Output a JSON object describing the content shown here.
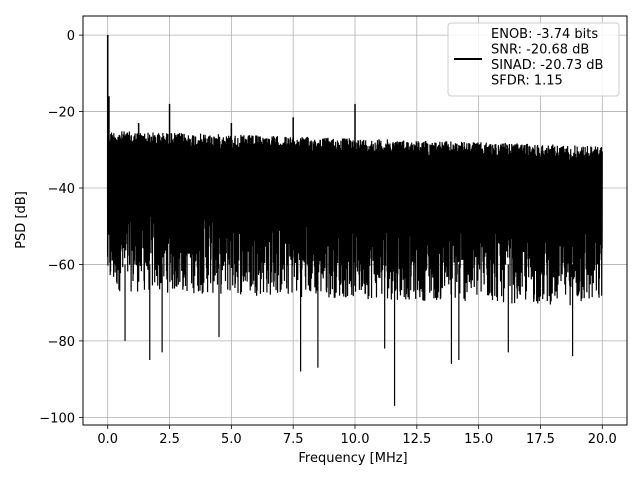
{
  "chart_data": {
    "type": "line",
    "title": "",
    "xlabel": "Frequency [MHz]",
    "ylabel": "PSD [dB]",
    "xlim": [
      -1.0,
      21.0
    ],
    "ylim": [
      -102,
      5
    ],
    "xticks": [
      0.0,
      2.5,
      5.0,
      7.5,
      10.0,
      12.5,
      15.0,
      17.5,
      20.0
    ],
    "xtick_labels": [
      "0.0",
      "2.5",
      "5.0",
      "7.5",
      "10.0",
      "12.5",
      "15.0",
      "17.5",
      "20.0"
    ],
    "yticks": [
      0,
      -20,
      -40,
      -60,
      -80,
      -100
    ],
    "ytick_labels": [
      "0",
      "−20",
      "−40",
      "−60",
      "−80",
      "−100"
    ],
    "grid": true,
    "legend_position": "top-right",
    "line_color": "#000000",
    "series": [
      {
        "name": "ENOB: -3.74 bits\nSNR: -20.68 dB\nSINAD: -20.73 dB\nSFDR: 1.15",
        "noise_envelope": {
          "x_range": [
            0.0,
            20.0
          ],
          "upper": [
            [
              0.0,
              -25
            ],
            [
              5.0,
              -26
            ],
            [
              10.0,
              -27
            ],
            [
              15.0,
              -28
            ],
            [
              20.0,
              -29
            ]
          ],
          "lower": [
            [
              0.0,
              -67
            ],
            [
              5.0,
              -68
            ],
            [
              10.0,
              -69
            ],
            [
              15.0,
              -70
            ],
            [
              20.0,
              -71
            ]
          ]
        },
        "peaks": [
          {
            "x": 0.0,
            "y": 0
          },
          {
            "x": 0.05,
            "y": -16
          },
          {
            "x": 2.5,
            "y": -18
          },
          {
            "x": 7.5,
            "y": -21.5
          },
          {
            "x": 10.0,
            "y": -18
          },
          {
            "x": 1.25,
            "y": -23
          },
          {
            "x": 5.0,
            "y": -23
          }
        ],
        "dips": [
          {
            "x": 0.7,
            "y": -80
          },
          {
            "x": 1.7,
            "y": -85
          },
          {
            "x": 2.2,
            "y": -83
          },
          {
            "x": 4.5,
            "y": -79
          },
          {
            "x": 7.8,
            "y": -88
          },
          {
            "x": 8.5,
            "y": -87
          },
          {
            "x": 11.2,
            "y": -82
          },
          {
            "x": 11.6,
            "y": -97
          },
          {
            "x": 13.9,
            "y": -86
          },
          {
            "x": 14.2,
            "y": -85
          },
          {
            "x": 16.2,
            "y": -83
          },
          {
            "x": 18.8,
            "y": -84
          }
        ]
      }
    ]
  }
}
